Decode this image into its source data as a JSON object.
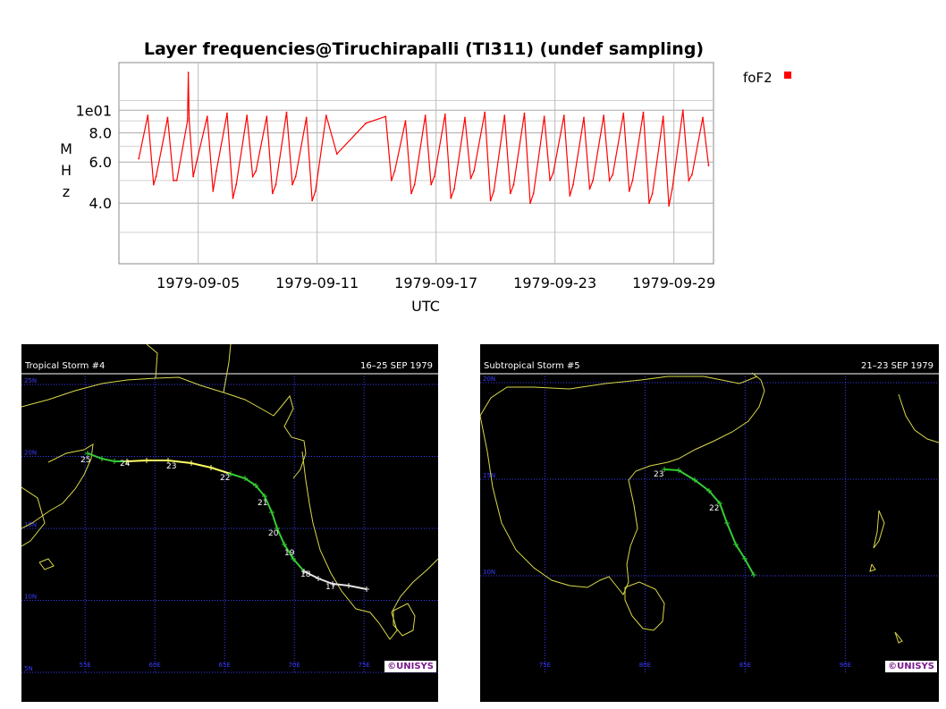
{
  "chart_data": [
    {
      "type": "line",
      "title": "Layer frequencies@Tiruchirapalli (TI311) (undef sampling)",
      "xlabel": "UTC",
      "ylabel": "MHz",
      "y_scale": "log",
      "ylim": [
        2.2,
        16
      ],
      "y_ticks": [
        {
          "value": 4.0,
          "label": "4.0"
        },
        {
          "value": 6.0,
          "label": "6.0"
        },
        {
          "value": 8.0,
          "label": "8.0"
        },
        {
          "value": 10.0,
          "label": "1e01"
        }
      ],
      "x_ticks": [
        "1979-09-05",
        "1979-09-11",
        "1979-09-17",
        "1979-09-23",
        "1979-09-29"
      ],
      "xlim": [
        "1979-09-01",
        "1979-10-01"
      ],
      "grid": true,
      "legend_position": "top-right",
      "series": [
        {
          "name": "foF2",
          "color": "#ff0000",
          "x": [
            "1979-09-02T00:00",
            "1979-09-02T11:00",
            "1979-09-02T18:00",
            "1979-09-02T21:00",
            "1979-09-03T11:00",
            "1979-09-03T18:00",
            "1979-09-03T22:00",
            "1979-09-04T11:00",
            "1979-09-04T12:00",
            "1979-09-04T13:00",
            "1979-09-04T18:00",
            "1979-09-04T22:00",
            "1979-09-05T11:00",
            "1979-09-05T18:00",
            "1979-09-05T22:00",
            "1979-09-06T11:00",
            "1979-09-06T18:00",
            "1979-09-06T22:00",
            "1979-09-07T11:00",
            "1979-09-07T18:00",
            "1979-09-07T22:00",
            "1979-09-08T11:00",
            "1979-09-08T18:00",
            "1979-09-08T22:00",
            "1979-09-09T11:00",
            "1979-09-09T18:00",
            "1979-09-09T22:00",
            "1979-09-10T11:00",
            "1979-09-10T18:00",
            "1979-09-10T22:00",
            "1979-09-11T11:00",
            "1979-09-12T00:00",
            "1979-09-13T11:00",
            "1979-09-14T11:00",
            "1979-09-14T18:00",
            "1979-09-14T22:00",
            "1979-09-15T11:00",
            "1979-09-15T18:00",
            "1979-09-15T22:00",
            "1979-09-16T11:00",
            "1979-09-16T18:00",
            "1979-09-16T22:00",
            "1979-09-17T11:00",
            "1979-09-17T18:00",
            "1979-09-17T22:00",
            "1979-09-18T11:00",
            "1979-09-18T18:00",
            "1979-09-18T22:00",
            "1979-09-19T11:00",
            "1979-09-19T18:00",
            "1979-09-19T22:00",
            "1979-09-20T11:00",
            "1979-09-20T18:00",
            "1979-09-20T22:00",
            "1979-09-21T11:00",
            "1979-09-21T18:00",
            "1979-09-21T22:00",
            "1979-09-22T11:00",
            "1979-09-22T18:00",
            "1979-09-22T22:00",
            "1979-09-23T11:00",
            "1979-09-23T18:00",
            "1979-09-23T22:00",
            "1979-09-24T11:00",
            "1979-09-24T18:00",
            "1979-09-24T22:00",
            "1979-09-25T11:00",
            "1979-09-25T18:00",
            "1979-09-25T22:00",
            "1979-09-26T11:00",
            "1979-09-26T18:00",
            "1979-09-26T22:00",
            "1979-09-27T11:00",
            "1979-09-27T18:00",
            "1979-09-27T22:00",
            "1979-09-28T11:00",
            "1979-09-28T18:00",
            "1979-09-28T22:00",
            "1979-09-29T11:00",
            "1979-09-29T18:00",
            "1979-09-29T22:00",
            "1979-09-30T11:00",
            "1979-09-30T18:00"
          ],
          "values": [
            6.2,
            9.5,
            4.8,
            5.2,
            9.3,
            5.0,
            5.0,
            9.0,
            14.5,
            9.2,
            5.2,
            6.0,
            9.4,
            4.5,
            5.5,
            9.7,
            4.2,
            4.8,
            9.5,
            5.2,
            5.5,
            9.4,
            4.4,
            4.8,
            9.8,
            4.8,
            5.2,
            9.3,
            4.1,
            4.5,
            9.5,
            6.5,
            8.8,
            9.4,
            5.0,
            5.5,
            9.0,
            4.4,
            4.8,
            9.5,
            4.8,
            5.2,
            9.6,
            4.2,
            4.6,
            9.3,
            5.1,
            5.5,
            9.8,
            4.1,
            4.5,
            9.5,
            4.4,
            4.8,
            9.7,
            4.0,
            4.4,
            9.4,
            5.0,
            5.4,
            9.5,
            4.3,
            4.8,
            9.3,
            4.6,
            5.0,
            9.5,
            5.0,
            5.3,
            9.7,
            4.5,
            5.0,
            9.8,
            4.0,
            4.4,
            9.4,
            3.9,
            4.6,
            10.0,
            5.0,
            5.3,
            9.3,
            5.8
          ]
        }
      ]
    }
  ],
  "panels": {
    "left": {
      "title": "Tropical Storm #4",
      "dates": "16–25 SEP 1979",
      "lat_labels": [
        "25N",
        "20N",
        "15N",
        "10N",
        "5N"
      ],
      "lon_labels": [
        "55E",
        "60E",
        "65E",
        "70E",
        "75E"
      ],
      "track_labels": [
        "25",
        "24",
        "23",
        "22",
        "21",
        "20",
        "19",
        "18",
        "17"
      ],
      "copyright": "©UNISYS"
    },
    "right": {
      "title": "Subtropical Storm #5",
      "dates": "21–23 SEP 1979",
      "lat_labels": [
        "20N",
        "15N",
        "10N"
      ],
      "lon_labels": [
        "75E",
        "80E",
        "85E",
        "90E"
      ],
      "track_labels": [
        "23",
        "22"
      ],
      "copyright": "©UNISYS"
    }
  },
  "colors": {
    "map_background": "#000000",
    "grid_blue": "#3a3aff",
    "coastline": "#d8d84a",
    "track_white": "#e6e6e6",
    "track_yellow": "#ffff66",
    "track_green": "#33cc33",
    "chart_line": "#ff0000"
  }
}
